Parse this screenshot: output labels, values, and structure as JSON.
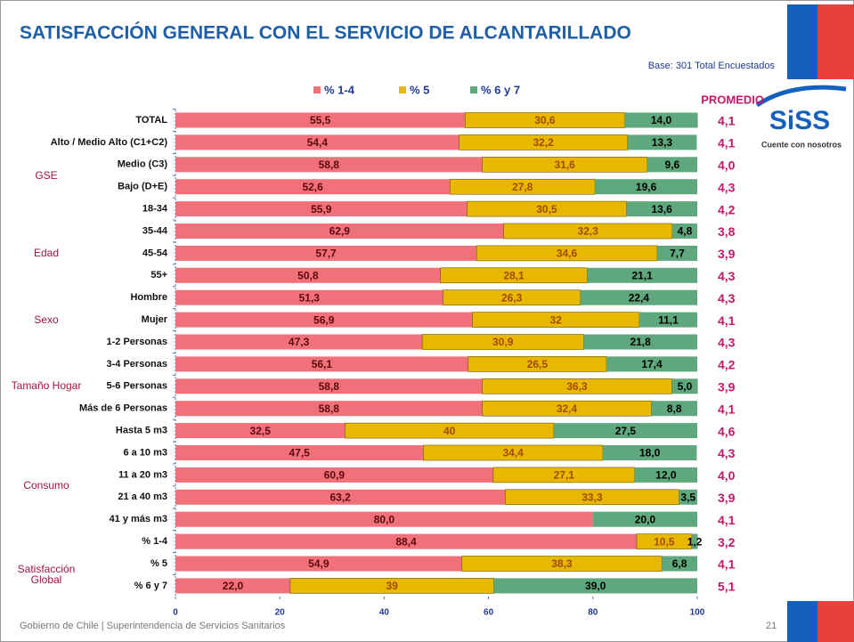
{
  "header": {
    "title": "SATISFACCIÓN GENERAL CON EL SERVICIO DE ALCANTARILLADO",
    "note": "Base: 301 Total Encuestados"
  },
  "logo": {
    "name": "SiSS",
    "tagline": "Cuente con nosotros"
  },
  "footer": {
    "text": "Gobierno de Chile | Superintendencia de Servicios Sanitarios",
    "page": "21"
  },
  "chart_data": {
    "type": "stacked-barh",
    "categories": [
      "TOTAL",
      "Alto / Medio Alto (C1+C2)",
      "Medio (C3)",
      "Bajo (D+E)",
      "18-34",
      "35-44",
      "45-54",
      "55+",
      "Hombre",
      "Mujer",
      "1-2 Personas",
      "3-4 Personas",
      "5-6 Personas",
      "Más de 6 Personas",
      "Hasta 5 m3",
      "6 a 10 m3",
      "11 a 20 m3",
      "21 a 40 m3",
      "41 y más m3",
      "% 1-4",
      "% 5",
      "% 6 y 7"
    ],
    "category_groups": [
      null,
      "GSE",
      "GSE",
      "GSE",
      "Edad",
      "Edad",
      "Edad",
      "Edad",
      "Sexo",
      "Sexo",
      "Tamaño Hogar",
      "Tamaño Hogar",
      "Tamaño Hogar",
      "Tamaño Hogar",
      "Consumo",
      "Consumo",
      "Consumo",
      "Consumo",
      "Consumo",
      "Satisfacción Global",
      "Satisfacción Global",
      "Satisfacción Global"
    ],
    "series": [
      {
        "name": "% 1-4",
        "color": "#f2707a",
        "label_color": "#5a0a10",
        "values": [
          55.5,
          54.4,
          58.8,
          52.6,
          55.9,
          62.9,
          57.7,
          50.8,
          51.3,
          56.9,
          47.3,
          56.1,
          58.8,
          58.8,
          32.5,
          47.5,
          60.9,
          63.2,
          80.0,
          88.4,
          54.9,
          22.0
        ],
        "value_labels": [
          "55,5",
          "54,4",
          "58,8",
          "52,6",
          "55,9",
          "62,9",
          "57,7",
          "50,8",
          "51,3",
          "56,9",
          "47,3",
          "56,1",
          "58,8",
          "58,8",
          "32,5",
          "47,5",
          "60,9",
          "63,2",
          "80,0",
          "88,4",
          "54,9",
          "22,0"
        ]
      },
      {
        "name": "% 5",
        "color": "#e8b800",
        "label_color": "#a04a00",
        "values": [
          30.6,
          32.2,
          31.6,
          27.8,
          30.5,
          32.3,
          34.6,
          28.1,
          26.3,
          32,
          30.9,
          26.5,
          36.3,
          32.4,
          40,
          34.4,
          27.1,
          33.3,
          null,
          10.5,
          38.3,
          39
        ],
        "value_labels": [
          "30,6",
          "32,2",
          "31,6",
          "27,8",
          "30,5",
          "32,3",
          "34,6",
          "28,1",
          "26,3",
          "32",
          "30,9",
          "26,5",
          "36,3",
          "32,4",
          "40",
          "34,4",
          "27,1",
          "33,3",
          null,
          "10,5",
          "38,3",
          "39"
        ]
      },
      {
        "name": "% 6 y 7",
        "color": "#5fa77c",
        "label_color": "#000000",
        "values": [
          14.0,
          13.3,
          9.6,
          19.6,
          13.6,
          4.8,
          7.7,
          21.1,
          22.4,
          11.1,
          21.8,
          17.4,
          5.0,
          8.8,
          27.5,
          18.0,
          12.0,
          3.5,
          20.0,
          1.2,
          6.8,
          39.0
        ],
        "value_labels": [
          "14,0",
          "13,3",
          "9,6",
          "19,6",
          "13,6",
          "4,8",
          "7,7",
          "21,1",
          "22,4",
          "11,1",
          "21,8",
          "17,4",
          "5,0",
          "8,8",
          "27,5",
          "18,0",
          "12,0",
          "3,5",
          "20,0",
          "1,2",
          "6,8",
          "39,0"
        ]
      }
    ],
    "average": {
      "title": "PROMEDIO",
      "values": [
        4.1,
        4.1,
        4.0,
        4.3,
        4.2,
        3.8,
        3.9,
        4.3,
        4.3,
        4.1,
        4.3,
        4.2,
        3.9,
        4.1,
        4.6,
        4.3,
        4.0,
        3.9,
        4.1,
        3.2,
        4.1,
        5.1
      ],
      "value_labels": [
        "4,1",
        "4,1",
        "4,0",
        "4,3",
        "4,2",
        "3,8",
        "3,9",
        "4,3",
        "4,3",
        "4,1",
        "4,3",
        "4,2",
        "3,9",
        "4,1",
        "4,6",
        "4,3",
        "4,0",
        "3,9",
        "4,1",
        "3,2",
        "4,1",
        "5,1"
      ]
    },
    "xlim": [
      0,
      100
    ],
    "xticks": [
      0,
      20,
      40,
      60,
      80,
      100
    ],
    "legend": "top"
  }
}
